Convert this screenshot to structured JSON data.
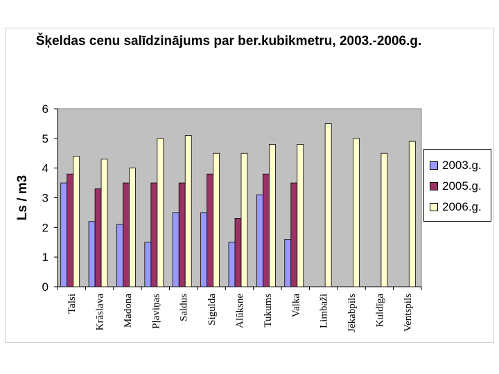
{
  "chart_data": {
    "type": "bar",
    "title": "Šķeldas cenu salīdzinājums par ber.kubikmetru, 2003.-2006.g.",
    "ylabel": "Ls / m3",
    "xlabel": "",
    "ylim": [
      0,
      6
    ],
    "yticks": [
      "0",
      "1",
      "2",
      "3",
      "4",
      "5",
      "6"
    ],
    "grid": false,
    "legend_position": "right",
    "categories": [
      "Talsi",
      "Krāslava",
      "Madona",
      "Pļaviņas",
      "Saldus",
      "Sigulda",
      "Alūksne",
      "Tukums",
      "Valka",
      "Limbaži",
      "Jēkabpils",
      "Kuldīga",
      "Ventspils"
    ],
    "series": [
      {
        "name": "2003.g.",
        "color": "#9999ff",
        "values": [
          3.5,
          2.2,
          2.1,
          1.5,
          2.5,
          2.5,
          1.5,
          3.1,
          1.6,
          null,
          null,
          null,
          null
        ]
      },
      {
        "name": "2005.g.",
        "color": "#993366",
        "values": [
          3.8,
          3.3,
          3.5,
          3.5,
          3.5,
          3.8,
          2.3,
          3.8,
          3.5,
          null,
          null,
          null,
          null
        ]
      },
      {
        "name": "2006.g.",
        "color": "#ffffcc",
        "values": [
          4.4,
          4.3,
          4.0,
          5.0,
          5.1,
          4.5,
          4.5,
          4.8,
          4.8,
          5.5,
          5.0,
          4.5,
          4.9
        ]
      }
    ]
  }
}
